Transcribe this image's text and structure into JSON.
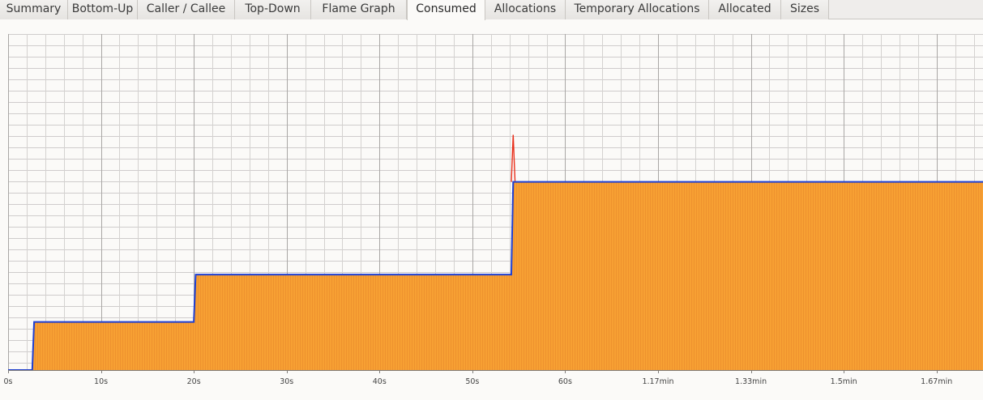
{
  "tabs": [
    {
      "label": "Summary"
    },
    {
      "label": "Bottom-Up"
    },
    {
      "label": "Caller / Callee"
    },
    {
      "label": "Top-Down"
    },
    {
      "label": "Flame Graph"
    },
    {
      "label": "Consumed"
    },
    {
      "label": "Allocations"
    },
    {
      "label": "Temporary Allocations"
    },
    {
      "label": "Allocated"
    },
    {
      "label": "Sizes"
    }
  ],
  "active_tab": "Consumed",
  "chart_data": {
    "type": "area",
    "x_tick_labels": [
      "0s",
      "10s",
      "20s",
      "30s",
      "40s",
      "50s",
      "60s",
      "1.17min",
      "1.33min",
      "1.5min",
      "1.67min"
    ],
    "x_tick_values_s": [
      0,
      10,
      20,
      30,
      40,
      50,
      60,
      70,
      80,
      90,
      100
    ],
    "xlim_s": [
      0,
      105
    ],
    "ylim": [
      0,
      1
    ],
    "grid": true,
    "series": [
      {
        "role": "total",
        "color": "#1f3fd0",
        "fill": "#f7a033",
        "x": [
          0,
          2.6,
          2.8,
          20.0,
          20.2,
          54.2,
          54.4,
          105
        ],
        "y": [
          0.0,
          0.0,
          0.143,
          0.143,
          0.284,
          0.284,
          0.56,
          0.56
        ]
      },
      {
        "role": "peak",
        "color": "#e8301c",
        "x": [
          54.2,
          54.4,
          54.6
        ],
        "y": [
          0.56,
          0.7,
          0.56
        ]
      }
    ]
  }
}
